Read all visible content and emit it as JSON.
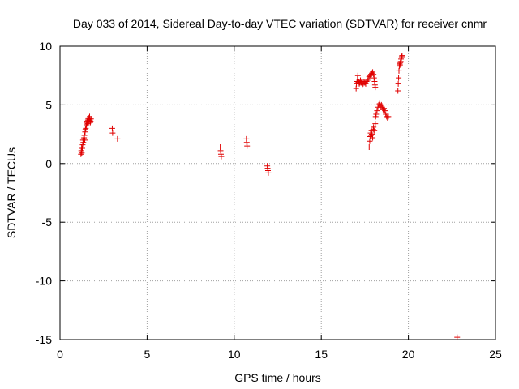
{
  "chart_data": {
    "type": "scatter",
    "title": "Day 033 of 2014, Sidereal Day-to-day VTEC variation (SDTVAR) for receiver cnmr",
    "xlabel": "GPS time / hours",
    "ylabel": "SDTVAR / TECUs",
    "xlim": [
      0,
      25
    ],
    "ylim": [
      -15,
      10
    ],
    "xticks": [
      "0",
      "5",
      "10",
      "15",
      "20",
      "25"
    ],
    "yticks": [
      "10",
      "5",
      "0",
      "-5",
      "-10",
      "-15"
    ],
    "grid": true,
    "marker": "plus",
    "color": "#e00000",
    "series": [
      {
        "points": [
          [
            1.2,
            0.8
          ],
          [
            1.22,
            1.1
          ],
          [
            1.24,
            1.4
          ],
          [
            1.25,
            0.9
          ],
          [
            1.28,
            1.3
          ],
          [
            1.3,
            1.6
          ],
          [
            1.32,
            2.0
          ],
          [
            1.34,
            1.8
          ],
          [
            1.36,
            2.1
          ],
          [
            1.38,
            2.2
          ],
          [
            1.4,
            2.4
          ],
          [
            1.42,
            2.0
          ],
          [
            1.44,
            2.7
          ],
          [
            1.46,
            2.9
          ],
          [
            1.48,
            3.0
          ],
          [
            1.5,
            3.2
          ],
          [
            1.52,
            3.3
          ],
          [
            1.54,
            3.5
          ],
          [
            1.56,
            3.6
          ],
          [
            1.58,
            3.4
          ],
          [
            1.6,
            3.7
          ],
          [
            1.62,
            3.8
          ],
          [
            1.64,
            3.9
          ],
          [
            1.66,
            3.6
          ],
          [
            1.68,
            3.8
          ],
          [
            1.7,
            4.0
          ],
          [
            1.72,
            3.7
          ],
          [
            1.74,
            3.5
          ],
          [
            1.76,
            3.6
          ],
          [
            1.78,
            3.8
          ],
          [
            3.0,
            3.0
          ],
          [
            3.02,
            2.6
          ],
          [
            3.3,
            2.1
          ],
          [
            9.2,
            1.4
          ],
          [
            9.22,
            1.1
          ],
          [
            9.24,
            0.8
          ],
          [
            9.26,
            0.6
          ],
          [
            10.7,
            2.1
          ],
          [
            10.72,
            1.8
          ],
          [
            10.74,
            1.5
          ],
          [
            11.9,
            -0.2
          ],
          [
            11.92,
            -0.4
          ],
          [
            11.94,
            -0.6
          ],
          [
            11.96,
            -0.8
          ],
          [
            17.0,
            6.4
          ],
          [
            17.02,
            6.8
          ],
          [
            17.05,
            7.0
          ],
          [
            17.08,
            7.2
          ],
          [
            17.1,
            7.5
          ],
          [
            17.12,
            6.9
          ],
          [
            17.15,
            7.0
          ],
          [
            17.18,
            6.8
          ],
          [
            17.2,
            6.9
          ],
          [
            17.25,
            7.1
          ],
          [
            17.3,
            6.9
          ],
          [
            17.35,
            6.7
          ],
          [
            17.4,
            6.8
          ],
          [
            17.45,
            7.0
          ],
          [
            17.5,
            6.9
          ],
          [
            17.55,
            6.8
          ],
          [
            17.6,
            7.0
          ],
          [
            17.65,
            7.1
          ],
          [
            17.7,
            7.2
          ],
          [
            17.75,
            7.4
          ],
          [
            17.8,
            7.5
          ],
          [
            17.85,
            7.6
          ],
          [
            17.9,
            7.7
          ],
          [
            17.95,
            7.8
          ],
          [
            18.0,
            7.6
          ],
          [
            18.03,
            7.3
          ],
          [
            18.06,
            7.0
          ],
          [
            18.08,
            6.7
          ],
          [
            18.1,
            6.5
          ],
          [
            17.75,
            1.4
          ],
          [
            17.78,
            1.9
          ],
          [
            17.8,
            2.3
          ],
          [
            17.83,
            2.6
          ],
          [
            17.85,
            2.4
          ],
          [
            17.88,
            2.8
          ],
          [
            17.9,
            2.5
          ],
          [
            17.95,
            2.2
          ],
          [
            17.98,
            2.9
          ],
          [
            18.0,
            3.1
          ],
          [
            18.05,
            2.8
          ],
          [
            18.1,
            3.4
          ],
          [
            18.12,
            4.0
          ],
          [
            18.15,
            4.2
          ],
          [
            18.2,
            4.5
          ],
          [
            18.25,
            4.8
          ],
          [
            18.3,
            5.0
          ],
          [
            18.35,
            5.1
          ],
          [
            18.4,
            4.9
          ],
          [
            18.45,
            5.0
          ],
          [
            18.5,
            4.8
          ],
          [
            18.55,
            4.6
          ],
          [
            18.6,
            4.7
          ],
          [
            18.65,
            4.5
          ],
          [
            18.7,
            4.2
          ],
          [
            18.75,
            4.0
          ],
          [
            18.8,
            3.9
          ],
          [
            18.85,
            4.0
          ],
          [
            19.4,
            6.2
          ],
          [
            19.42,
            6.8
          ],
          [
            19.44,
            7.3
          ],
          [
            19.46,
            7.9
          ],
          [
            19.48,
            8.3
          ],
          [
            19.5,
            8.5
          ],
          [
            19.52,
            8.4
          ],
          [
            19.54,
            8.6
          ],
          [
            19.56,
            8.7
          ],
          [
            19.58,
            8.9
          ],
          [
            19.6,
            9.0
          ],
          [
            19.62,
            9.1
          ],
          [
            19.64,
            9.2
          ],
          [
            22.8,
            -14.8
          ]
        ]
      }
    ]
  }
}
